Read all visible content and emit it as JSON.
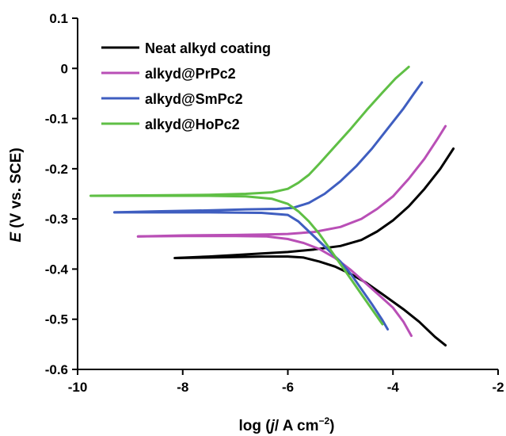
{
  "chart_data": {
    "type": "line",
    "title": "",
    "xlabel_parts": [
      "log (",
      "j",
      "/ A cm",
      "−2",
      ")"
    ],
    "ylabel_parts": [
      "E",
      " (V vs. SCE)"
    ],
    "xlim": [
      -10,
      -2
    ],
    "ylim": [
      -0.6,
      0.1
    ],
    "x_ticks": [
      -10,
      -8,
      -6,
      -4,
      -2
    ],
    "y_ticks": [
      0.1,
      0,
      -0.1,
      -0.2,
      -0.3,
      -0.4,
      -0.5,
      -0.6
    ],
    "x_tick_labels": [
      "-10",
      "-8",
      "-6",
      "-4",
      "-2"
    ],
    "y_tick_labels": [
      "0.1",
      "0",
      "-0.1",
      "-0.2",
      "-0.3",
      "-0.4",
      "-0.5",
      "-0.6"
    ],
    "grid": false,
    "legend_position": "top-left",
    "series": [
      {
        "name": "Neat alkyd coating",
        "color": "#000000",
        "cathodic": [
          [
            -8.15,
            -0.378
          ],
          [
            -7.5,
            -0.377
          ],
          [
            -7.0,
            -0.376
          ],
          [
            -6.5,
            -0.375
          ],
          [
            -6.0,
            -0.375
          ],
          [
            -5.7,
            -0.377
          ],
          [
            -5.4,
            -0.385
          ],
          [
            -5.1,
            -0.395
          ],
          [
            -4.8,
            -0.41
          ],
          [
            -4.5,
            -0.428
          ],
          [
            -4.2,
            -0.45
          ],
          [
            -3.8,
            -0.48
          ],
          [
            -3.5,
            -0.505
          ],
          [
            -3.2,
            -0.535
          ],
          [
            -3.0,
            -0.552
          ]
        ],
        "anodic": [
          [
            -8.15,
            -0.378
          ],
          [
            -7.5,
            -0.375
          ],
          [
            -7.0,
            -0.372
          ],
          [
            -6.5,
            -0.369
          ],
          [
            -6.0,
            -0.366
          ],
          [
            -5.5,
            -0.361
          ],
          [
            -5.0,
            -0.354
          ],
          [
            -4.6,
            -0.342
          ],
          [
            -4.3,
            -0.325
          ],
          [
            -4.0,
            -0.303
          ],
          [
            -3.7,
            -0.275
          ],
          [
            -3.4,
            -0.24
          ],
          [
            -3.1,
            -0.2
          ],
          [
            -2.85,
            -0.16
          ]
        ]
      },
      {
        "name": "alkyd@PrPc2",
        "color": "#b94fb6",
        "cathodic": [
          [
            -8.85,
            -0.335
          ],
          [
            -8.0,
            -0.334
          ],
          [
            -7.0,
            -0.334
          ],
          [
            -6.4,
            -0.335
          ],
          [
            -6.0,
            -0.34
          ],
          [
            -5.7,
            -0.348
          ],
          [
            -5.4,
            -0.36
          ],
          [
            -5.1,
            -0.378
          ],
          [
            -4.8,
            -0.402
          ],
          [
            -4.5,
            -0.43
          ],
          [
            -4.2,
            -0.458
          ],
          [
            -4.0,
            -0.477
          ],
          [
            -3.8,
            -0.505
          ],
          [
            -3.65,
            -0.533
          ]
        ],
        "anodic": [
          [
            -8.85,
            -0.335
          ],
          [
            -8.0,
            -0.333
          ],
          [
            -7.0,
            -0.332
          ],
          [
            -6.4,
            -0.331
          ],
          [
            -6.0,
            -0.33
          ],
          [
            -5.5,
            -0.326
          ],
          [
            -5.0,
            -0.316
          ],
          [
            -4.6,
            -0.3
          ],
          [
            -4.3,
            -0.28
          ],
          [
            -4.0,
            -0.255
          ],
          [
            -3.7,
            -0.22
          ],
          [
            -3.4,
            -0.18
          ],
          [
            -3.15,
            -0.14
          ],
          [
            -3.0,
            -0.115
          ]
        ]
      },
      {
        "name": "alkyd@SmPc2",
        "color": "#3f5ec0",
        "cathodic": [
          [
            -9.3,
            -0.287
          ],
          [
            -8.5,
            -0.287
          ],
          [
            -7.5,
            -0.287
          ],
          [
            -6.5,
            -0.288
          ],
          [
            -6.0,
            -0.292
          ],
          [
            -5.8,
            -0.305
          ],
          [
            -5.6,
            -0.325
          ],
          [
            -5.3,
            -0.355
          ],
          [
            -5.0,
            -0.385
          ],
          [
            -4.8,
            -0.41
          ],
          [
            -4.6,
            -0.44
          ],
          [
            -4.4,
            -0.47
          ],
          [
            -4.2,
            -0.502
          ],
          [
            -4.1,
            -0.52
          ]
        ],
        "anodic": [
          [
            -9.3,
            -0.287
          ],
          [
            -8.5,
            -0.285
          ],
          [
            -7.5,
            -0.283
          ],
          [
            -6.8,
            -0.281
          ],
          [
            -6.2,
            -0.28
          ],
          [
            -5.9,
            -0.278
          ],
          [
            -5.6,
            -0.268
          ],
          [
            -5.3,
            -0.25
          ],
          [
            -5.0,
            -0.225
          ],
          [
            -4.7,
            -0.195
          ],
          [
            -4.4,
            -0.16
          ],
          [
            -4.1,
            -0.12
          ],
          [
            -3.8,
            -0.08
          ],
          [
            -3.6,
            -0.05
          ],
          [
            -3.45,
            -0.028
          ]
        ]
      },
      {
        "name": "alkyd@HoPc2",
        "color": "#5fbf45",
        "cathodic": [
          [
            -9.75,
            -0.254
          ],
          [
            -8.5,
            -0.254
          ],
          [
            -7.5,
            -0.254
          ],
          [
            -6.8,
            -0.255
          ],
          [
            -6.3,
            -0.26
          ],
          [
            -6.0,
            -0.27
          ],
          [
            -5.8,
            -0.285
          ],
          [
            -5.6,
            -0.305
          ],
          [
            -5.4,
            -0.33
          ],
          [
            -5.2,
            -0.36
          ],
          [
            -5.0,
            -0.39
          ],
          [
            -4.8,
            -0.42
          ],
          [
            -4.6,
            -0.45
          ],
          [
            -4.4,
            -0.48
          ],
          [
            -4.2,
            -0.51
          ]
        ],
        "anodic": [
          [
            -9.75,
            -0.254
          ],
          [
            -8.5,
            -0.253
          ],
          [
            -7.5,
            -0.252
          ],
          [
            -6.8,
            -0.25
          ],
          [
            -6.3,
            -0.247
          ],
          [
            -6.0,
            -0.24
          ],
          [
            -5.8,
            -0.228
          ],
          [
            -5.6,
            -0.212
          ],
          [
            -5.4,
            -0.19
          ],
          [
            -5.1,
            -0.155
          ],
          [
            -4.8,
            -0.12
          ],
          [
            -4.5,
            -0.083
          ],
          [
            -4.2,
            -0.048
          ],
          [
            -3.95,
            -0.02
          ],
          [
            -3.7,
            0.003
          ]
        ]
      }
    ]
  }
}
